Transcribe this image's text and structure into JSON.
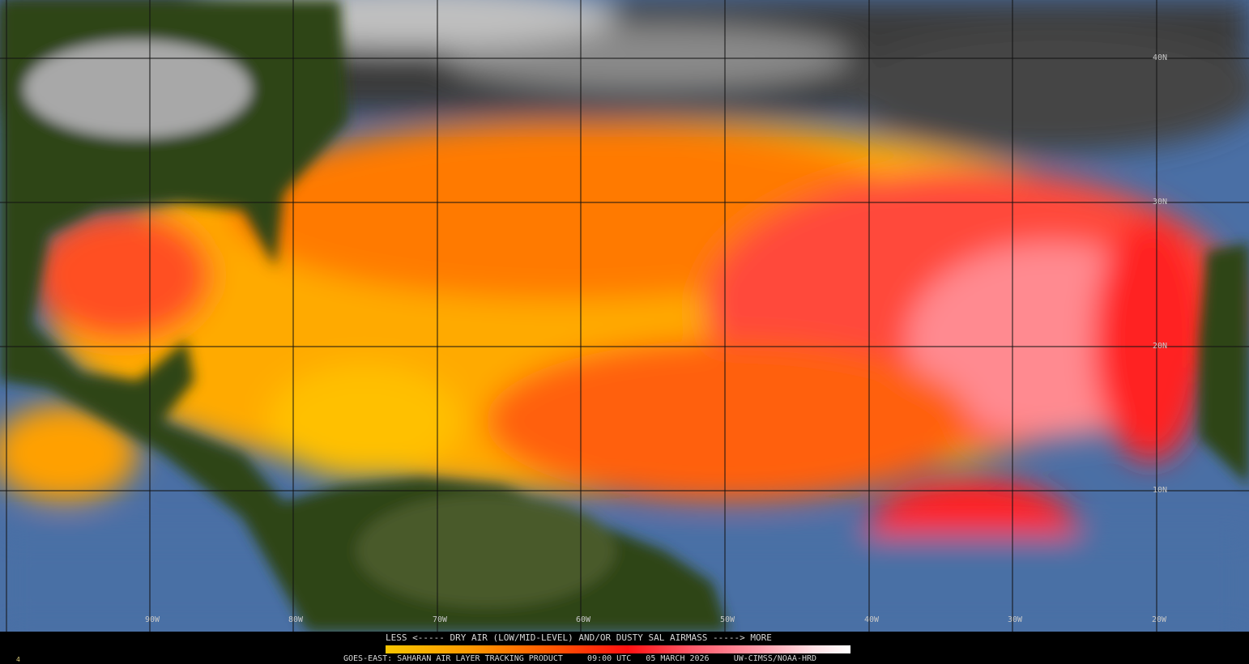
{
  "legend": {
    "scale_text": "LESS <----- DRY AIR (LOW/MID-LEVEL) AND/OR DUSTY SAL AIRMASS -----> MORE",
    "colorbar_colors": [
      "#f7c500",
      "#ff9a00",
      "#ff5a00",
      "#ff1010",
      "#ff5a6a",
      "#ff9aa8",
      "#ffe0e4",
      "#ffffff"
    ]
  },
  "footer": {
    "product": "GOES-EAST: SAHARAN AIR LAYER TRACKING PRODUCT",
    "time": "09:00 UTC",
    "date": "05 MARCH 2026",
    "credit": "UW-CIMSS/NOAA-HRD",
    "corner_mark": "4"
  },
  "grid": {
    "latitudes": [
      "40N",
      "30N",
      "20N",
      "10N"
    ],
    "longitudes": [
      "90W",
      "80W",
      "70W",
      "60W",
      "50W",
      "40W",
      "30W",
      "20W"
    ]
  },
  "colors": {
    "land": "#2a3d14",
    "ocean_clear": "#4a6fa5",
    "cloud": "#bdbdbd",
    "dry_air": "#ff5a00",
    "dust": "#ff1a1a"
  }
}
